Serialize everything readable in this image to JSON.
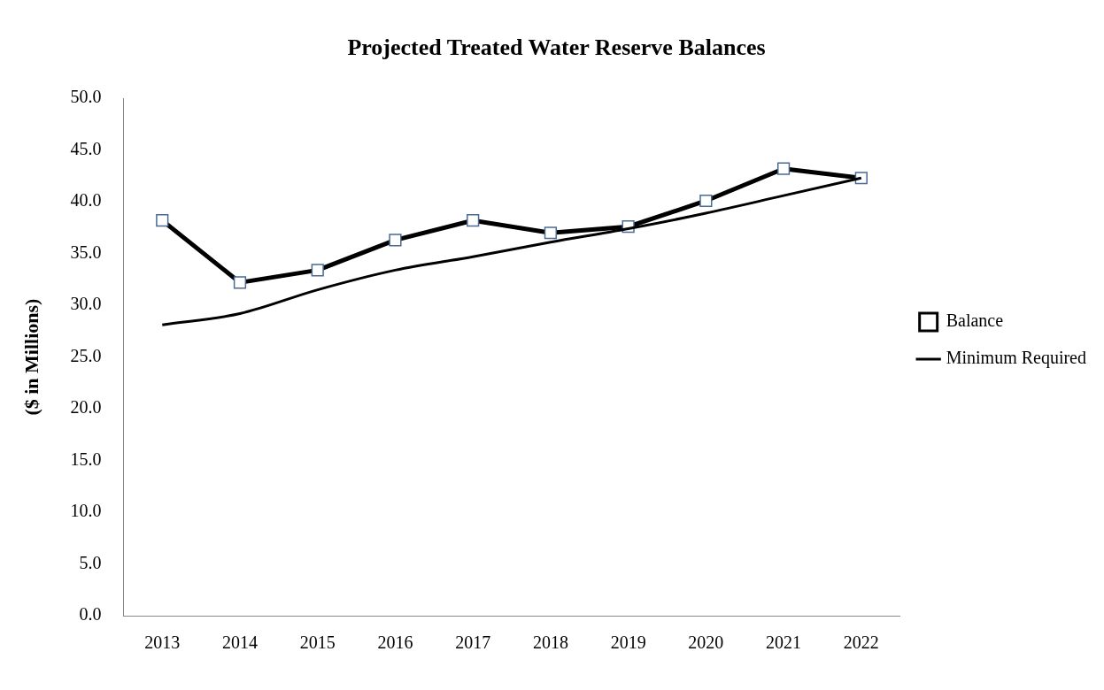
{
  "chart_data": {
    "type": "line",
    "title": "Projected Treated Water Reserve Balances",
    "ylabel": "($ in Millions)",
    "categories": [
      "2013",
      "2014",
      "2015",
      "2016",
      "2017",
      "2018",
      "2019",
      "2020",
      "2021",
      "2022"
    ],
    "series": [
      {
        "name": "Balance",
        "color": "#000000",
        "marker": "square",
        "values": [
          38.2,
          32.2,
          33.4,
          36.3,
          38.2,
          37.0,
          37.6,
          40.1,
          43.2,
          42.3
        ]
      },
      {
        "name": "Minimum Required",
        "color": "#000000",
        "marker": "none",
        "values": [
          28.1,
          29.2,
          31.5,
          33.4,
          34.7,
          36.1,
          37.4,
          38.9,
          40.6,
          42.3
        ]
      }
    ],
    "ylim": [
      0,
      50
    ],
    "yticks": [
      {
        "value": 0,
        "label": "0.0"
      },
      {
        "value": 5,
        "label": "5.0"
      },
      {
        "value": 10,
        "label": "10.0"
      },
      {
        "value": 15,
        "label": "15.0"
      },
      {
        "value": 20,
        "label": "20.0"
      },
      {
        "value": 25,
        "label": "25.0"
      },
      {
        "value": 30,
        "label": "30.0"
      },
      {
        "value": 35,
        "label": "35.0"
      },
      {
        "value": 40,
        "label": "40.0"
      },
      {
        "value": 45,
        "label": "45.0"
      },
      {
        "value": 50,
        "label": "50.0"
      }
    ],
    "grid": false,
    "legend": "right"
  }
}
